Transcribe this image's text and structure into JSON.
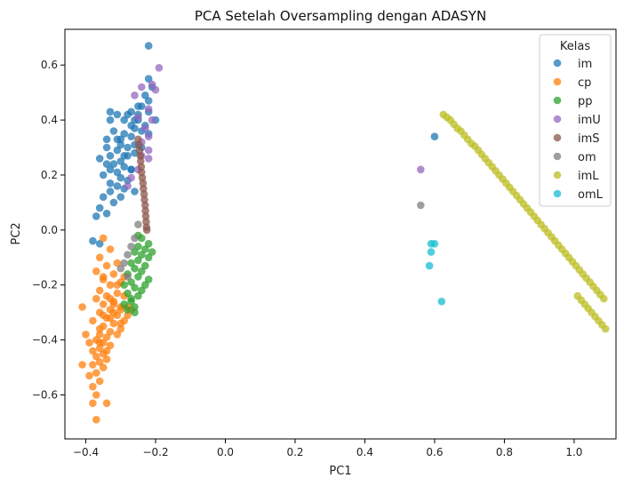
{
  "chart_data": {
    "type": "scatter",
    "title": "PCA Setelah Oversampling dengan ADASYN",
    "xlabel": "PC1",
    "ylabel": "PC2",
    "xlim": [
      -0.46,
      1.12
    ],
    "ylim": [
      -0.76,
      0.73
    ],
    "xticks": [
      -0.4,
      -0.2,
      0.0,
      0.2,
      0.4,
      0.6,
      0.8,
      1.0
    ],
    "yticks": [
      -0.6,
      -0.4,
      -0.2,
      0.0,
      0.2,
      0.4,
      0.6
    ],
    "grid": false,
    "legend": {
      "title": "Kelas",
      "placement": "top-right"
    },
    "series": [
      {
        "name": "im",
        "color": "#1f77b4",
        "points": [
          [
            -0.22,
            0.67
          ],
          [
            -0.22,
            0.55
          ],
          [
            -0.21,
            0.52
          ],
          [
            -0.23,
            0.49
          ],
          [
            -0.24,
            0.45
          ],
          [
            -0.25,
            0.42
          ],
          [
            -0.22,
            0.43
          ],
          [
            -0.26,
            0.4
          ],
          [
            -0.2,
            0.4
          ],
          [
            -0.23,
            0.38
          ],
          [
            -0.27,
            0.38
          ],
          [
            -0.29,
            0.4
          ],
          [
            -0.31,
            0.42
          ],
          [
            -0.33,
            0.43
          ],
          [
            -0.33,
            0.4
          ],
          [
            -0.26,
            0.37
          ],
          [
            -0.22,
            0.35
          ],
          [
            -0.24,
            0.36
          ],
          [
            -0.27,
            0.34
          ],
          [
            -0.29,
            0.35
          ],
          [
            -0.31,
            0.33
          ],
          [
            -0.34,
            0.33
          ],
          [
            -0.3,
            0.31
          ],
          [
            -0.28,
            0.3
          ],
          [
            -0.26,
            0.31
          ],
          [
            -0.31,
            0.29
          ],
          [
            -0.33,
            0.27
          ],
          [
            -0.28,
            0.27
          ],
          [
            -0.26,
            0.28
          ],
          [
            -0.3,
            0.25
          ],
          [
            -0.32,
            0.24
          ],
          [
            -0.34,
            0.24
          ],
          [
            -0.29,
            0.23
          ],
          [
            -0.27,
            0.22
          ],
          [
            -0.33,
            0.22
          ],
          [
            -0.31,
            0.21
          ],
          [
            -0.35,
            0.2
          ],
          [
            -0.3,
            0.19
          ],
          [
            -0.28,
            0.18
          ],
          [
            -0.33,
            0.17
          ],
          [
            -0.31,
            0.16
          ],
          [
            -0.29,
            0.15
          ],
          [
            -0.26,
            0.14
          ],
          [
            -0.33,
            0.14
          ],
          [
            -0.35,
            0.12
          ],
          [
            -0.3,
            0.12
          ],
          [
            -0.32,
            0.1
          ],
          [
            -0.36,
            0.08
          ],
          [
            -0.34,
            0.06
          ],
          [
            -0.37,
            0.05
          ],
          [
            -0.27,
            0.22
          ],
          [
            -0.25,
            0.4
          ],
          [
            -0.22,
            0.47
          ],
          [
            -0.3,
            0.33
          ],
          [
            -0.38,
            -0.04
          ],
          [
            -0.36,
            -0.05
          ],
          [
            -0.25,
            0.45
          ],
          [
            -0.27,
            0.43
          ],
          [
            -0.24,
            0.3
          ],
          [
            -0.29,
            0.27
          ],
          [
            -0.34,
            0.3
          ],
          [
            -0.36,
            0.26
          ],
          [
            -0.32,
            0.36
          ],
          [
            -0.28,
            0.42
          ],
          [
            0.6,
            0.34
          ]
        ]
      },
      {
        "name": "cp",
        "color": "#ff7f0e",
        "points": [
          [
            -0.35,
            -0.03
          ],
          [
            -0.33,
            -0.07
          ],
          [
            -0.36,
            -0.1
          ],
          [
            -0.31,
            -0.12
          ],
          [
            -0.34,
            -0.13
          ],
          [
            -0.37,
            -0.15
          ],
          [
            -0.32,
            -0.16
          ],
          [
            -0.35,
            -0.18
          ],
          [
            -0.3,
            -0.19
          ],
          [
            -0.33,
            -0.2
          ],
          [
            -0.36,
            -0.22
          ],
          [
            -0.31,
            -0.23
          ],
          [
            -0.34,
            -0.24
          ],
          [
            -0.37,
            -0.25
          ],
          [
            -0.32,
            -0.26
          ],
          [
            -0.35,
            -0.27
          ],
          [
            -0.3,
            -0.28
          ],
          [
            -0.33,
            -0.29
          ],
          [
            -0.36,
            -0.3
          ],
          [
            -0.31,
            -0.31
          ],
          [
            -0.34,
            -0.32
          ],
          [
            -0.38,
            -0.33
          ],
          [
            -0.32,
            -0.34
          ],
          [
            -0.35,
            -0.35
          ],
          [
            -0.3,
            -0.36
          ],
          [
            -0.33,
            -0.37
          ],
          [
            -0.36,
            -0.38
          ],
          [
            -0.34,
            -0.39
          ],
          [
            -0.37,
            -0.4
          ],
          [
            -0.35,
            -0.41
          ],
          [
            -0.33,
            -0.42
          ],
          [
            -0.36,
            -0.43
          ],
          [
            -0.38,
            -0.44
          ],
          [
            -0.35,
            -0.45
          ],
          [
            -0.37,
            -0.46
          ],
          [
            -0.34,
            -0.47
          ],
          [
            -0.36,
            -0.48
          ],
          [
            -0.38,
            -0.49
          ],
          [
            -0.35,
            -0.5
          ],
          [
            -0.37,
            -0.52
          ],
          [
            -0.39,
            -0.53
          ],
          [
            -0.36,
            -0.55
          ],
          [
            -0.38,
            -0.57
          ],
          [
            -0.37,
            -0.6
          ],
          [
            -0.38,
            -0.63
          ],
          [
            -0.37,
            -0.69
          ],
          [
            -0.34,
            -0.63
          ],
          [
            -0.41,
            -0.28
          ],
          [
            -0.4,
            -0.38
          ],
          [
            -0.41,
            -0.49
          ],
          [
            -0.39,
            -0.41
          ],
          [
            -0.29,
            -0.33
          ],
          [
            -0.28,
            -0.31
          ],
          [
            -0.3,
            -0.34
          ],
          [
            -0.32,
            -0.3
          ],
          [
            -0.29,
            -0.24
          ],
          [
            -0.27,
            -0.29
          ],
          [
            -0.31,
            -0.38
          ],
          [
            -0.33,
            -0.32
          ],
          [
            -0.3,
            -0.29
          ],
          [
            -0.28,
            -0.28
          ],
          [
            -0.32,
            -0.27
          ],
          [
            -0.34,
            -0.44
          ],
          [
            -0.36,
            -0.36
          ],
          [
            -0.35,
            -0.31
          ],
          [
            -0.33,
            -0.25
          ],
          [
            -0.31,
            -0.2
          ],
          [
            -0.29,
            -0.17
          ],
          [
            -0.35,
            -0.17
          ],
          [
            -0.36,
            -0.41
          ]
        ]
      },
      {
        "name": "pp",
        "color": "#2ca02c",
        "points": [
          [
            -0.25,
            -0.02
          ],
          [
            -0.24,
            -0.03
          ],
          [
            -0.22,
            -0.05
          ],
          [
            -0.25,
            -0.06
          ],
          [
            -0.23,
            -0.07
          ],
          [
            -0.26,
            -0.08
          ],
          [
            -0.24,
            -0.09
          ],
          [
            -0.22,
            -0.1
          ],
          [
            -0.25,
            -0.11
          ],
          [
            -0.27,
            -0.12
          ],
          [
            -0.23,
            -0.13
          ],
          [
            -0.26,
            -0.14
          ],
          [
            -0.24,
            -0.15
          ],
          [
            -0.28,
            -0.16
          ],
          [
            -0.25,
            -0.17
          ],
          [
            -0.22,
            -0.18
          ],
          [
            -0.27,
            -0.19
          ],
          [
            -0.29,
            -0.2
          ],
          [
            -0.26,
            -0.21
          ],
          [
            -0.24,
            -0.22
          ],
          [
            -0.28,
            -0.23
          ],
          [
            -0.25,
            -0.24
          ],
          [
            -0.27,
            -0.26
          ],
          [
            -0.29,
            -0.27
          ],
          [
            -0.26,
            -0.28
          ],
          [
            -0.28,
            -0.29
          ],
          [
            -0.26,
            -0.3
          ],
          [
            -0.27,
            -0.25
          ],
          [
            -0.23,
            -0.2
          ],
          [
            -0.21,
            -0.08
          ]
        ]
      },
      {
        "name": "imU",
        "color": "#9467bd",
        "points": [
          [
            -0.19,
            0.59
          ],
          [
            -0.21,
            0.53
          ],
          [
            -0.24,
            0.52
          ],
          [
            -0.26,
            0.49
          ],
          [
            -0.2,
            0.51
          ],
          [
            -0.22,
            0.44
          ],
          [
            -0.25,
            0.41
          ],
          [
            -0.21,
            0.4
          ],
          [
            -0.23,
            0.37
          ],
          [
            -0.22,
            0.34
          ],
          [
            -0.24,
            0.32
          ],
          [
            -0.22,
            0.29
          ],
          [
            -0.24,
            0.27
          ],
          [
            -0.22,
            0.26
          ],
          [
            -0.25,
            0.22
          ],
          [
            -0.27,
            0.19
          ],
          [
            -0.28,
            0.16
          ],
          [
            0.56,
            0.22
          ]
        ]
      },
      {
        "name": "imS",
        "color": "#8c564b",
        "points": [
          [
            -0.25,
            0.33
          ],
          [
            -0.248,
            0.31
          ],
          [
            -0.246,
            0.29
          ],
          [
            -0.244,
            0.27
          ],
          [
            -0.243,
            0.25
          ],
          [
            -0.241,
            0.23
          ],
          [
            -0.24,
            0.21
          ],
          [
            -0.238,
            0.19
          ],
          [
            -0.236,
            0.17
          ],
          [
            -0.235,
            0.15
          ],
          [
            -0.233,
            0.13
          ],
          [
            -0.232,
            0.11
          ],
          [
            -0.23,
            0.09
          ],
          [
            -0.229,
            0.07
          ],
          [
            -0.228,
            0.05
          ],
          [
            -0.227,
            0.03
          ],
          [
            -0.226,
            0.01
          ],
          [
            -0.225,
            0.0
          ]
        ]
      },
      {
        "name": "om",
        "color": "#7f7f7f",
        "points": [
          [
            -0.25,
            0.02
          ],
          [
            -0.26,
            -0.03
          ],
          [
            -0.27,
            -0.06
          ],
          [
            -0.28,
            -0.09
          ],
          [
            -0.29,
            -0.12
          ],
          [
            -0.3,
            -0.14
          ],
          [
            -0.28,
            -0.17
          ],
          [
            0.56,
            0.09
          ]
        ]
      },
      {
        "name": "imL",
        "color": "#bcbd22",
        "points": [
          [
            0.625,
            0.42
          ],
          [
            0.635,
            0.41
          ],
          [
            0.645,
            0.4
          ],
          [
            0.655,
            0.385
          ],
          [
            0.665,
            0.37
          ],
          [
            0.675,
            0.36
          ],
          [
            0.685,
            0.345
          ],
          [
            0.695,
            0.33
          ],
          [
            0.705,
            0.315
          ],
          [
            0.715,
            0.305
          ],
          [
            0.725,
            0.29
          ],
          [
            0.735,
            0.275
          ],
          [
            0.745,
            0.26
          ],
          [
            0.755,
            0.245
          ],
          [
            0.765,
            0.23
          ],
          [
            0.775,
            0.215
          ],
          [
            0.785,
            0.2
          ],
          [
            0.795,
            0.185
          ],
          [
            0.805,
            0.17
          ],
          [
            0.815,
            0.155
          ],
          [
            0.825,
            0.14
          ],
          [
            0.835,
            0.125
          ],
          [
            0.845,
            0.11
          ],
          [
            0.855,
            0.095
          ],
          [
            0.865,
            0.08
          ],
          [
            0.875,
            0.065
          ],
          [
            0.885,
            0.05
          ],
          [
            0.895,
            0.035
          ],
          [
            0.905,
            0.02
          ],
          [
            0.915,
            0.005
          ],
          [
            0.925,
            -0.01
          ],
          [
            0.935,
            -0.025
          ],
          [
            0.945,
            -0.04
          ],
          [
            0.955,
            -0.055
          ],
          [
            0.965,
            -0.07
          ],
          [
            0.975,
            -0.085
          ],
          [
            0.985,
            -0.1
          ],
          [
            0.995,
            -0.115
          ],
          [
            1.005,
            -0.13
          ],
          [
            1.015,
            -0.145
          ],
          [
            1.025,
            -0.16
          ],
          [
            1.035,
            -0.175
          ],
          [
            1.045,
            -0.19
          ],
          [
            1.055,
            -0.205
          ],
          [
            1.065,
            -0.22
          ],
          [
            1.075,
            -0.235
          ],
          [
            1.085,
            -0.25
          ],
          [
            1.09,
            -0.36
          ],
          [
            1.08,
            -0.345
          ],
          [
            1.07,
            -0.33
          ],
          [
            1.06,
            -0.315
          ],
          [
            1.05,
            -0.3
          ],
          [
            1.04,
            -0.285
          ],
          [
            1.03,
            -0.27
          ],
          [
            1.02,
            -0.255
          ],
          [
            1.01,
            -0.24
          ]
        ]
      },
      {
        "name": "omL",
        "color": "#17becf",
        "points": [
          [
            0.59,
            -0.05
          ],
          [
            0.6,
            -0.05
          ],
          [
            0.59,
            -0.08
          ],
          [
            0.585,
            -0.13
          ],
          [
            0.62,
            -0.26
          ]
        ]
      }
    ]
  }
}
